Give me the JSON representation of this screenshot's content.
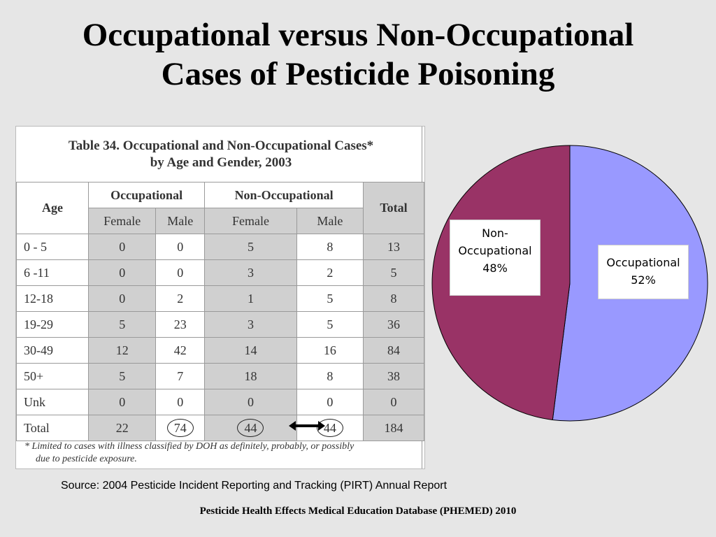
{
  "title": {
    "line1": "Occupational versus Non-Occupational",
    "line2": "Cases of  Pesticide Poisoning"
  },
  "table": {
    "caption_line1": "Table 34.  Occupational and Non-Occupational Cases*",
    "caption_line2": "by Age and Gender, 2003",
    "header_age": "Age",
    "header_occupational": "Occupational",
    "header_non_occupational": "Non-Occupational",
    "header_total": "Total",
    "sub_female_1": "Female",
    "sub_male_1": "Male",
    "sub_female_2": "Female",
    "sub_male_2": "Male",
    "rows": [
      {
        "age": "0 - 5",
        "occ_f": "0",
        "occ_m": "0",
        "non_f": "5",
        "non_m": "8",
        "total": "13"
      },
      {
        "age": "6 -11",
        "occ_f": "0",
        "occ_m": "0",
        "non_f": "3",
        "non_m": "2",
        "total": "5"
      },
      {
        "age": "12-18",
        "occ_f": "0",
        "occ_m": "2",
        "non_f": "1",
        "non_m": "5",
        "total": "8"
      },
      {
        "age": "19-29",
        "occ_f": "5",
        "occ_m": "23",
        "non_f": "3",
        "non_m": "5",
        "total": "36"
      },
      {
        "age": "30-49",
        "occ_f": "12",
        "occ_m": "42",
        "non_f": "14",
        "non_m": "16",
        "total": "84"
      },
      {
        "age": "50+",
        "occ_f": "5",
        "occ_m": "7",
        "non_f": "18",
        "non_m": "8",
        "total": "38"
      },
      {
        "age": "Unk",
        "occ_f": "0",
        "occ_m": "0",
        "non_f": "0",
        "non_m": "0",
        "total": "0"
      },
      {
        "age": "Total",
        "occ_f": "22",
        "occ_m": "74",
        "non_f": "44",
        "non_m": "44",
        "total": "184"
      }
    ],
    "footnote_line1": "*  Limited to cases with illness classified by DOH as definitely, probably, or possibly",
    "footnote_line2": "due to pesticide exposure."
  },
  "chart_data": {
    "type": "pie",
    "slices": [
      {
        "label_line1": "Occupational",
        "label_line2": "",
        "value": 52,
        "value_label": "52%",
        "color": "#9999ff"
      },
      {
        "label_line1": "Non-",
        "label_line2": "Occupational",
        "value": 48,
        "value_label": "48%",
        "color": "#993366"
      }
    ],
    "start_direction": "12 o'clock",
    "direction": "clockwise"
  },
  "source": "Source: 2004 Pesticide Incident Reporting and Tracking (PIRT) Annual Report",
  "footer": "Pesticide Health Effects Medical Education Database (PHEMED) 2010"
}
